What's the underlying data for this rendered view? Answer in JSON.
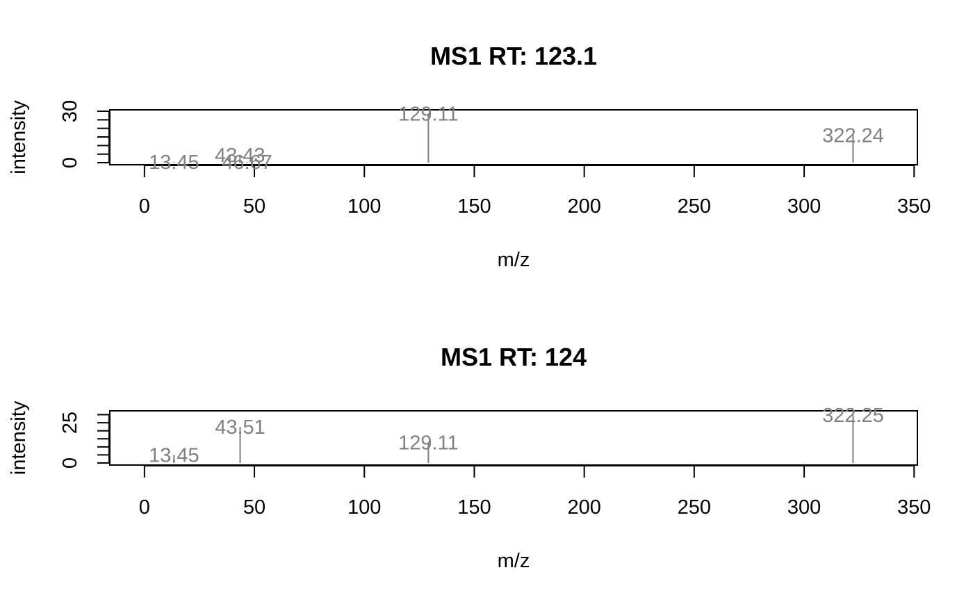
{
  "chart_data": [
    {
      "type": "bar",
      "title": "MS1 RT: 123.1",
      "xlabel": "m/z",
      "ylabel": "intensity",
      "xlim": [
        -15.75,
        351.5
      ],
      "ylim": [
        -1.2,
        30.8
      ],
      "x_ticks": [
        0,
        50,
        100,
        150,
        200,
        250,
        300,
        350
      ],
      "y_ticks": [
        0,
        30
      ],
      "y_minor_ticks": [
        0,
        5,
        10,
        15,
        20,
        25,
        30
      ],
      "peaks": [
        {
          "mz": 13.45,
          "intensity": 0.4,
          "label": "13.45"
        },
        {
          "mz": 43.43,
          "intensity": 4.5,
          "label": "43.43"
        },
        {
          "mz": 46.67,
          "intensity": 0.4,
          "label": "46.67"
        },
        {
          "mz": 129.11,
          "intensity": 28.6,
          "label": "129.11"
        },
        {
          "mz": 322.24,
          "intensity": 16.1,
          "label": "322.24"
        }
      ]
    },
    {
      "type": "bar",
      "title": "MS1 RT: 124",
      "xlabel": "m/z",
      "ylabel": "intensity",
      "xlim": [
        -15.75,
        351.5
      ],
      "ylim": [
        -1.3,
        32.4
      ],
      "x_ticks": [
        0,
        50,
        100,
        150,
        200,
        250,
        300,
        350
      ],
      "y_ticks": [
        0,
        25
      ],
      "y_minor_ticks": [
        0,
        5,
        10,
        15,
        20,
        25,
        30
      ],
      "peaks": [
        {
          "mz": 13.45,
          "intensity": 5.0,
          "label": "13.45"
        },
        {
          "mz": 43.51,
          "intensity": 22.4,
          "label": "43.51"
        },
        {
          "mz": 129.11,
          "intensity": 12.8,
          "label": "129.11"
        },
        {
          "mz": 322.25,
          "intensity": 29.7,
          "label": "322.25"
        }
      ]
    }
  ]
}
